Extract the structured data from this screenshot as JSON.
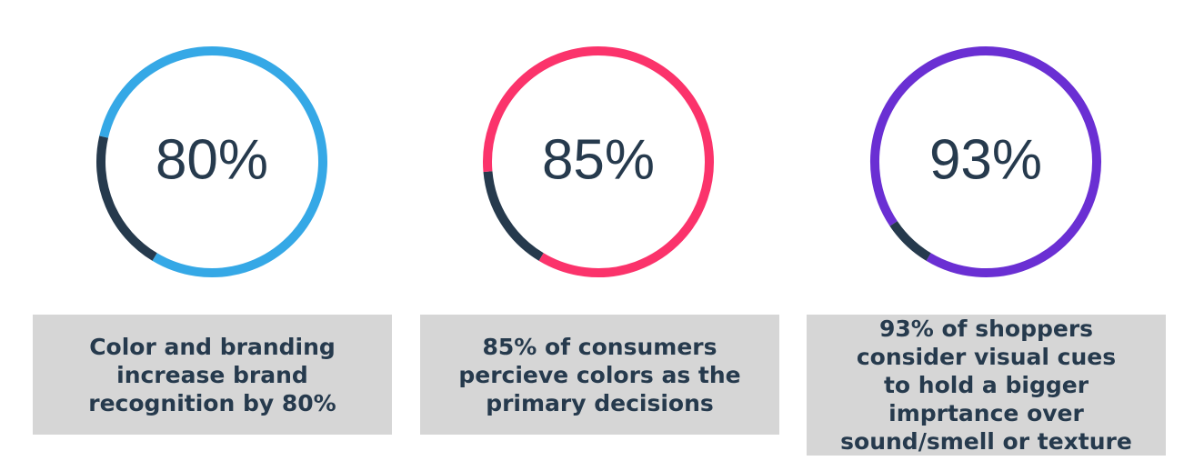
{
  "chart_data": [
    {
      "type": "donut",
      "values": [
        80
      ],
      "value_labels": [
        "80%"
      ],
      "ylim": [
        0,
        100
      ],
      "color": "#35a8e6",
      "track_color": "#263a4d",
      "caption": "Color and branding increase brand recognition by 80%"
    },
    {
      "type": "donut",
      "values": [
        85
      ],
      "value_labels": [
        "85%"
      ],
      "ylim": [
        0,
        100
      ],
      "color": "#fb336b",
      "track_color": "#263a4d",
      "caption": "85% of consumers percieve colors as the primary decisions"
    },
    {
      "type": "donut",
      "values": [
        93
      ],
      "value_labels": [
        "93%"
      ],
      "ylim": [
        0,
        100
      ],
      "color": "#6a2fd3",
      "track_color": "#263a4d",
      "caption": "93% of shoppers consider visual cues to hold a bigger imprtance over sound/smell or texture"
    }
  ]
}
